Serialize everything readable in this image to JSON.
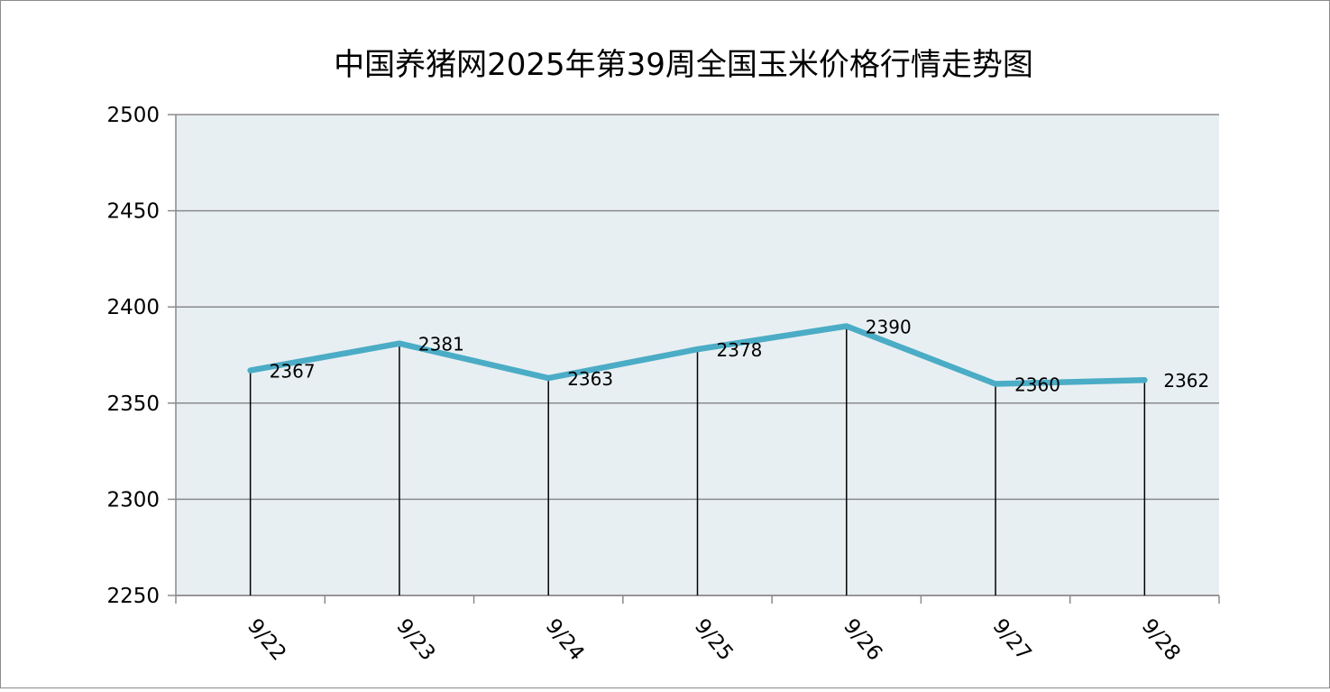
{
  "chart_data": {
    "type": "line",
    "title": "中国养猪网2025年第39周全国玉米价格行情走势图",
    "categories": [
      "9/22",
      "9/23",
      "9/24",
      "9/25",
      "9/26",
      "9/27",
      "9/28"
    ],
    "series": [
      {
        "values": [
          2367,
          2381,
          2363,
          2378,
          2390,
          2360,
          2362
        ],
        "color": "#4bacc6"
      }
    ],
    "ylim": [
      2250,
      2500
    ],
    "yticks": [
      2500,
      2450,
      2400,
      2350,
      2300,
      2250
    ],
    "grid": true,
    "drop_lines": true,
    "data_labels": true,
    "plot_background": "#e8eff2"
  }
}
